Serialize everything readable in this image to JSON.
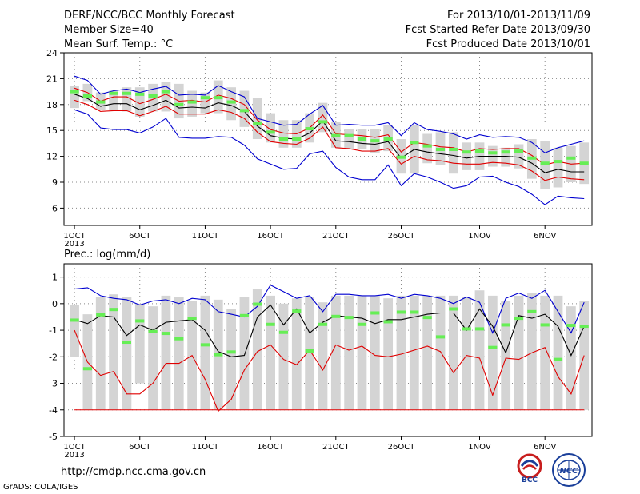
{
  "header": {
    "title": "DERF/NCC/BCC Monthly Forecast",
    "member_size": "Member Size=40",
    "variable": "Mean Surf. Temp.: °C",
    "period": "For 2013/10/01-2013/11/09",
    "start_date": "Fcst Started Refer Date 2013/09/30",
    "produced_date": "Fcst Produced Date 2013/10/01"
  },
  "footer": {
    "url": "http://cmdp.ncc.cma.gov.cn",
    "credit": "GrADS: COLA/IGES",
    "logo_bcc_text": "BCC",
    "logo_ncc_text": "NCC"
  },
  "colors": {
    "box": "#d4d4d4",
    "median_tick": "#66ee55",
    "mean_line": "#000000",
    "spread_line": "#e00000",
    "extreme_line": "#0000d0",
    "grid": "#888888"
  },
  "chart_data": [
    {
      "type": "box-line",
      "label": "",
      "x_tick_labels": [
        "1OCT",
        "6OCT",
        "11OCT",
        "16OCT",
        "21OCT",
        "26OCT",
        "1NOV",
        "6NOV"
      ],
      "x_tick_days": [
        1,
        6,
        11,
        16,
        21,
        26,
        32,
        37
      ],
      "x_year_label": "2013",
      "xlim": [
        0.2,
        40.6
      ],
      "ylim": [
        4,
        24
      ],
      "yticks": [
        6,
        9,
        12,
        15,
        18,
        21,
        24
      ],
      "grid": true,
      "days": [
        1,
        2,
        3,
        4,
        5,
        6,
        7,
        8,
        9,
        10,
        11,
        12,
        13,
        14,
        15,
        16,
        17,
        18,
        19,
        20,
        21,
        22,
        23,
        24,
        25,
        26,
        27,
        28,
        29,
        30,
        31,
        32,
        33,
        34,
        35,
        36,
        37,
        38,
        39,
        40
      ],
      "box_low": [
        17.6,
        18.4,
        17.4,
        17.4,
        17.2,
        16.6,
        17.2,
        17.2,
        16.4,
        16.6,
        17.0,
        17.0,
        16.2,
        15.4,
        14.0,
        13.6,
        13.0,
        13.0,
        13.6,
        14.8,
        13.0,
        12.8,
        12.8,
        12.4,
        12.6,
        10.0,
        10.0,
        11.2,
        11.0,
        10.0,
        10.4,
        10.4,
        10.8,
        10.8,
        10.6,
        9.4,
        8.2,
        8.4,
        9.0,
        8.8
      ],
      "box_high": [
        20.2,
        20.4,
        19.4,
        19.6,
        20.0,
        20.0,
        20.4,
        20.6,
        20.4,
        19.6,
        19.4,
        20.8,
        20.0,
        19.6,
        18.8,
        17.0,
        16.2,
        16.2,
        17.0,
        18.2,
        16.0,
        15.2,
        15.2,
        15.2,
        15.6,
        14.0,
        15.6,
        14.6,
        14.8,
        14.8,
        13.6,
        13.6,
        13.2,
        13.0,
        13.4,
        14.0,
        13.8,
        13.0,
        13.2,
        13.6
      ],
      "median": [
        19.5,
        19.0,
        18.3,
        19.3,
        19.3,
        19.2,
        19.0,
        19.5,
        18.0,
        18.3,
        18.8,
        18.8,
        18.3,
        17.3,
        15.8,
        14.8,
        14.0,
        14.0,
        15.2,
        16.0,
        14.4,
        14.4,
        14.0,
        13.8,
        14.0,
        11.9,
        13.6,
        13.2,
        12.8,
        12.8,
        12.5,
        12.6,
        12.4,
        12.5,
        12.6,
        11.8,
        11.2,
        11.4,
        11.8,
        11.2
      ],
      "series": [
        {
          "name": "",
          "role": "extreme-high",
          "color": "#0000d0",
          "values": [
            21.3,
            20.8,
            19.2,
            19.6,
            19.8,
            19.4,
            19.8,
            20.1,
            19.1,
            19.2,
            19.1,
            20.2,
            19.5,
            18.9,
            16.4,
            16.0,
            15.6,
            15.7,
            16.9,
            17.9,
            15.6,
            15.7,
            15.6,
            15.6,
            15.9,
            14.4,
            15.9,
            15.1,
            14.9,
            14.6,
            14.0,
            14.5,
            14.2,
            14.3,
            14.2,
            13.6,
            12.4,
            13.0,
            13.4,
            13.8
          ]
        },
        {
          "name": "",
          "role": "spread-high",
          "color": "#e00000",
          "values": [
            19.9,
            19.4,
            18.4,
            18.9,
            18.9,
            18.1,
            18.6,
            19.2,
            18.4,
            18.5,
            18.3,
            19.1,
            18.7,
            18.0,
            16.2,
            15.1,
            14.7,
            14.6,
            15.3,
            16.8,
            14.6,
            14.5,
            14.4,
            14.2,
            14.5,
            12.5,
            13.6,
            13.4,
            13.1,
            13.0,
            12.5,
            12.9,
            12.8,
            12.9,
            12.9,
            12.1,
            11.0,
            11.4,
            11.1,
            11.2
          ]
        },
        {
          "name": "",
          "role": "mean",
          "color": "#000000",
          "values": [
            19.2,
            18.7,
            17.8,
            18.1,
            18.1,
            17.4,
            17.9,
            18.5,
            17.6,
            17.7,
            17.6,
            18.2,
            17.9,
            17.2,
            15.5,
            14.4,
            14.1,
            14.0,
            14.7,
            16.1,
            13.8,
            13.7,
            13.5,
            13.4,
            13.7,
            11.8,
            12.8,
            12.5,
            12.3,
            12.1,
            11.8,
            12.0,
            12.0,
            12.0,
            11.9,
            11.2,
            10.1,
            10.5,
            10.2,
            10.2
          ]
        },
        {
          "name": "",
          "role": "spread-low",
          "color": "#e00000",
          "values": [
            18.5,
            18.0,
            17.2,
            17.3,
            17.3,
            16.7,
            17.2,
            17.8,
            16.9,
            16.9,
            16.9,
            17.4,
            17.1,
            16.4,
            14.8,
            13.7,
            13.5,
            13.4,
            14.1,
            15.4,
            13.0,
            12.9,
            12.6,
            12.6,
            12.9,
            11.1,
            12.0,
            11.6,
            11.5,
            11.2,
            11.1,
            11.1,
            11.3,
            11.2,
            11.0,
            10.3,
            9.2,
            9.6,
            9.4,
            9.3
          ]
        },
        {
          "name": "",
          "role": "extreme-low",
          "color": "#0000d0",
          "values": [
            17.4,
            16.9,
            15.3,
            15.1,
            15.1,
            14.7,
            15.4,
            16.4,
            14.2,
            14.1,
            14.1,
            14.3,
            14.2,
            13.3,
            11.7,
            11.1,
            10.5,
            10.6,
            12.3,
            12.6,
            10.7,
            9.6,
            9.3,
            9.3,
            11.0,
            8.6,
            10.0,
            9.6,
            9.0,
            8.3,
            8.6,
            9.6,
            9.7,
            9.0,
            8.5,
            7.6,
            6.4,
            7.4,
            7.2,
            7.1
          ]
        }
      ]
    },
    {
      "type": "box-line",
      "label": "Prec.: log(mm/d)",
      "x_tick_labels": [
        "1OCT",
        "6OCT",
        "11OCT",
        "16OCT",
        "21OCT",
        "26OCT",
        "1NOV",
        "6NOV"
      ],
      "x_tick_days": [
        1,
        6,
        11,
        16,
        21,
        26,
        32,
        37
      ],
      "x_year_label": "2013",
      "xlim": [
        0.2,
        40.6
      ],
      "ylim": [
        -5,
        1.5
      ],
      "yticks": [
        -5,
        -4,
        -3,
        -2,
        -1,
        0,
        1
      ],
      "grid": true,
      "days": [
        1,
        2,
        3,
        4,
        5,
        6,
        7,
        8,
        9,
        10,
        11,
        12,
        13,
        14,
        15,
        16,
        17,
        18,
        19,
        20,
        21,
        22,
        23,
        24,
        25,
        26,
        27,
        28,
        29,
        30,
        31,
        32,
        33,
        34,
        35,
        36,
        37,
        38,
        39,
        40
      ],
      "box_low": [
        -2.0,
        -4.0,
        -4.0,
        -4.0,
        -4.0,
        -3.0,
        -4.0,
        -4.0,
        -4.0,
        -4.0,
        -4.0,
        -4.0,
        -4.0,
        -4.0,
        -4.0,
        -4.0,
        -4.0,
        -4.0,
        -4.0,
        -4.0,
        -4.0,
        -4.0,
        -4.0,
        -4.0,
        -4.0,
        -4.0,
        -4.0,
        -4.0,
        -4.0,
        -4.0,
        -4.0,
        -4.0,
        -4.0,
        -4.0,
        -4.0,
        -4.0,
        -4.0,
        -4.0,
        -4.0,
        -4.0
      ],
      "box_high": [
        -0.05,
        -0.4,
        0.25,
        0.35,
        0.25,
        0.0,
        -0.1,
        0.3,
        0.25,
        0.1,
        0.3,
        0.15,
        -0.2,
        0.25,
        0.55,
        0.3,
        0.0,
        0.2,
        0.25,
        0.05,
        0.3,
        0.3,
        0.3,
        0.3,
        0.2,
        0.3,
        0.3,
        0.3,
        0.3,
        0.3,
        0.25,
        0.5,
        0.3,
        0.1,
        0.3,
        0.4,
        0.3,
        0.3,
        -0.1,
        0.1
      ],
      "median": [
        -0.62,
        -2.45,
        -0.42,
        -0.22,
        -1.45,
        -0.65,
        -1.05,
        -1.12,
        -1.32,
        -0.55,
        -1.55,
        -1.92,
        -1.82,
        -0.45,
        -0.02,
        -0.78,
        -1.08,
        -0.28,
        -1.78,
        -0.78,
        -0.48,
        -0.52,
        -0.78,
        -0.35,
        -0.68,
        -0.32,
        -0.32,
        -0.52,
        -1.25,
        -0.2,
        -0.95,
        -0.95,
        -1.65,
        -0.8,
        -0.55,
        -0.3,
        -0.8,
        -2.1,
        -0.82,
        -0.85
      ],
      "series": [
        {
          "name": "",
          "role": "extreme-high",
          "color": "#0000d0",
          "values": [
            0.55,
            0.6,
            0.3,
            0.2,
            0.15,
            -0.05,
            0.1,
            0.15,
            0.0,
            0.2,
            0.15,
            -0.3,
            -0.4,
            -0.5,
            -0.1,
            0.7,
            0.45,
            0.2,
            0.3,
            -0.3,
            0.35,
            0.35,
            0.3,
            0.3,
            0.35,
            0.2,
            0.35,
            0.3,
            0.2,
            0.0,
            0.25,
            0.05,
            -1.1,
            0.2,
            0.4,
            0.2,
            0.5,
            -0.3,
            -1.1,
            0.05
          ]
        },
        {
          "name": "",
          "role": "mean",
          "color": "#000000",
          "values": [
            -0.6,
            -0.75,
            -0.45,
            -0.5,
            -1.2,
            -0.8,
            -1.0,
            -0.7,
            -0.65,
            -0.6,
            -1.0,
            -1.8,
            -2.0,
            -1.95,
            -0.5,
            -0.05,
            -0.8,
            -0.2,
            -1.1,
            -0.7,
            -0.45,
            -0.5,
            -0.55,
            -0.75,
            -0.6,
            -0.6,
            -0.5,
            -0.4,
            -0.35,
            -0.35,
            -1.0,
            -0.2,
            -0.85,
            -1.85,
            -0.45,
            -0.55,
            -0.4,
            -0.85,
            -1.95,
            -0.85
          ]
        },
        {
          "name": "",
          "role": "spread-low",
          "color": "#e00000",
          "values": [
            -1.0,
            -2.2,
            -2.7,
            -2.55,
            -3.4,
            -3.4,
            -3.0,
            -2.25,
            -2.25,
            -1.95,
            -2.85,
            -4.05,
            -3.6,
            -2.5,
            -1.8,
            -1.55,
            -2.1,
            -2.3,
            -1.75,
            -2.5,
            -1.55,
            -1.75,
            -1.6,
            -1.95,
            -2.0,
            -1.9,
            -1.75,
            -1.6,
            -1.8,
            -2.6,
            -1.95,
            -2.05,
            -3.45,
            -2.05,
            -2.1,
            -1.85,
            -1.65,
            -2.75,
            -3.4,
            -1.95
          ]
        }
      ],
      "floor_value": -4.0
    }
  ]
}
